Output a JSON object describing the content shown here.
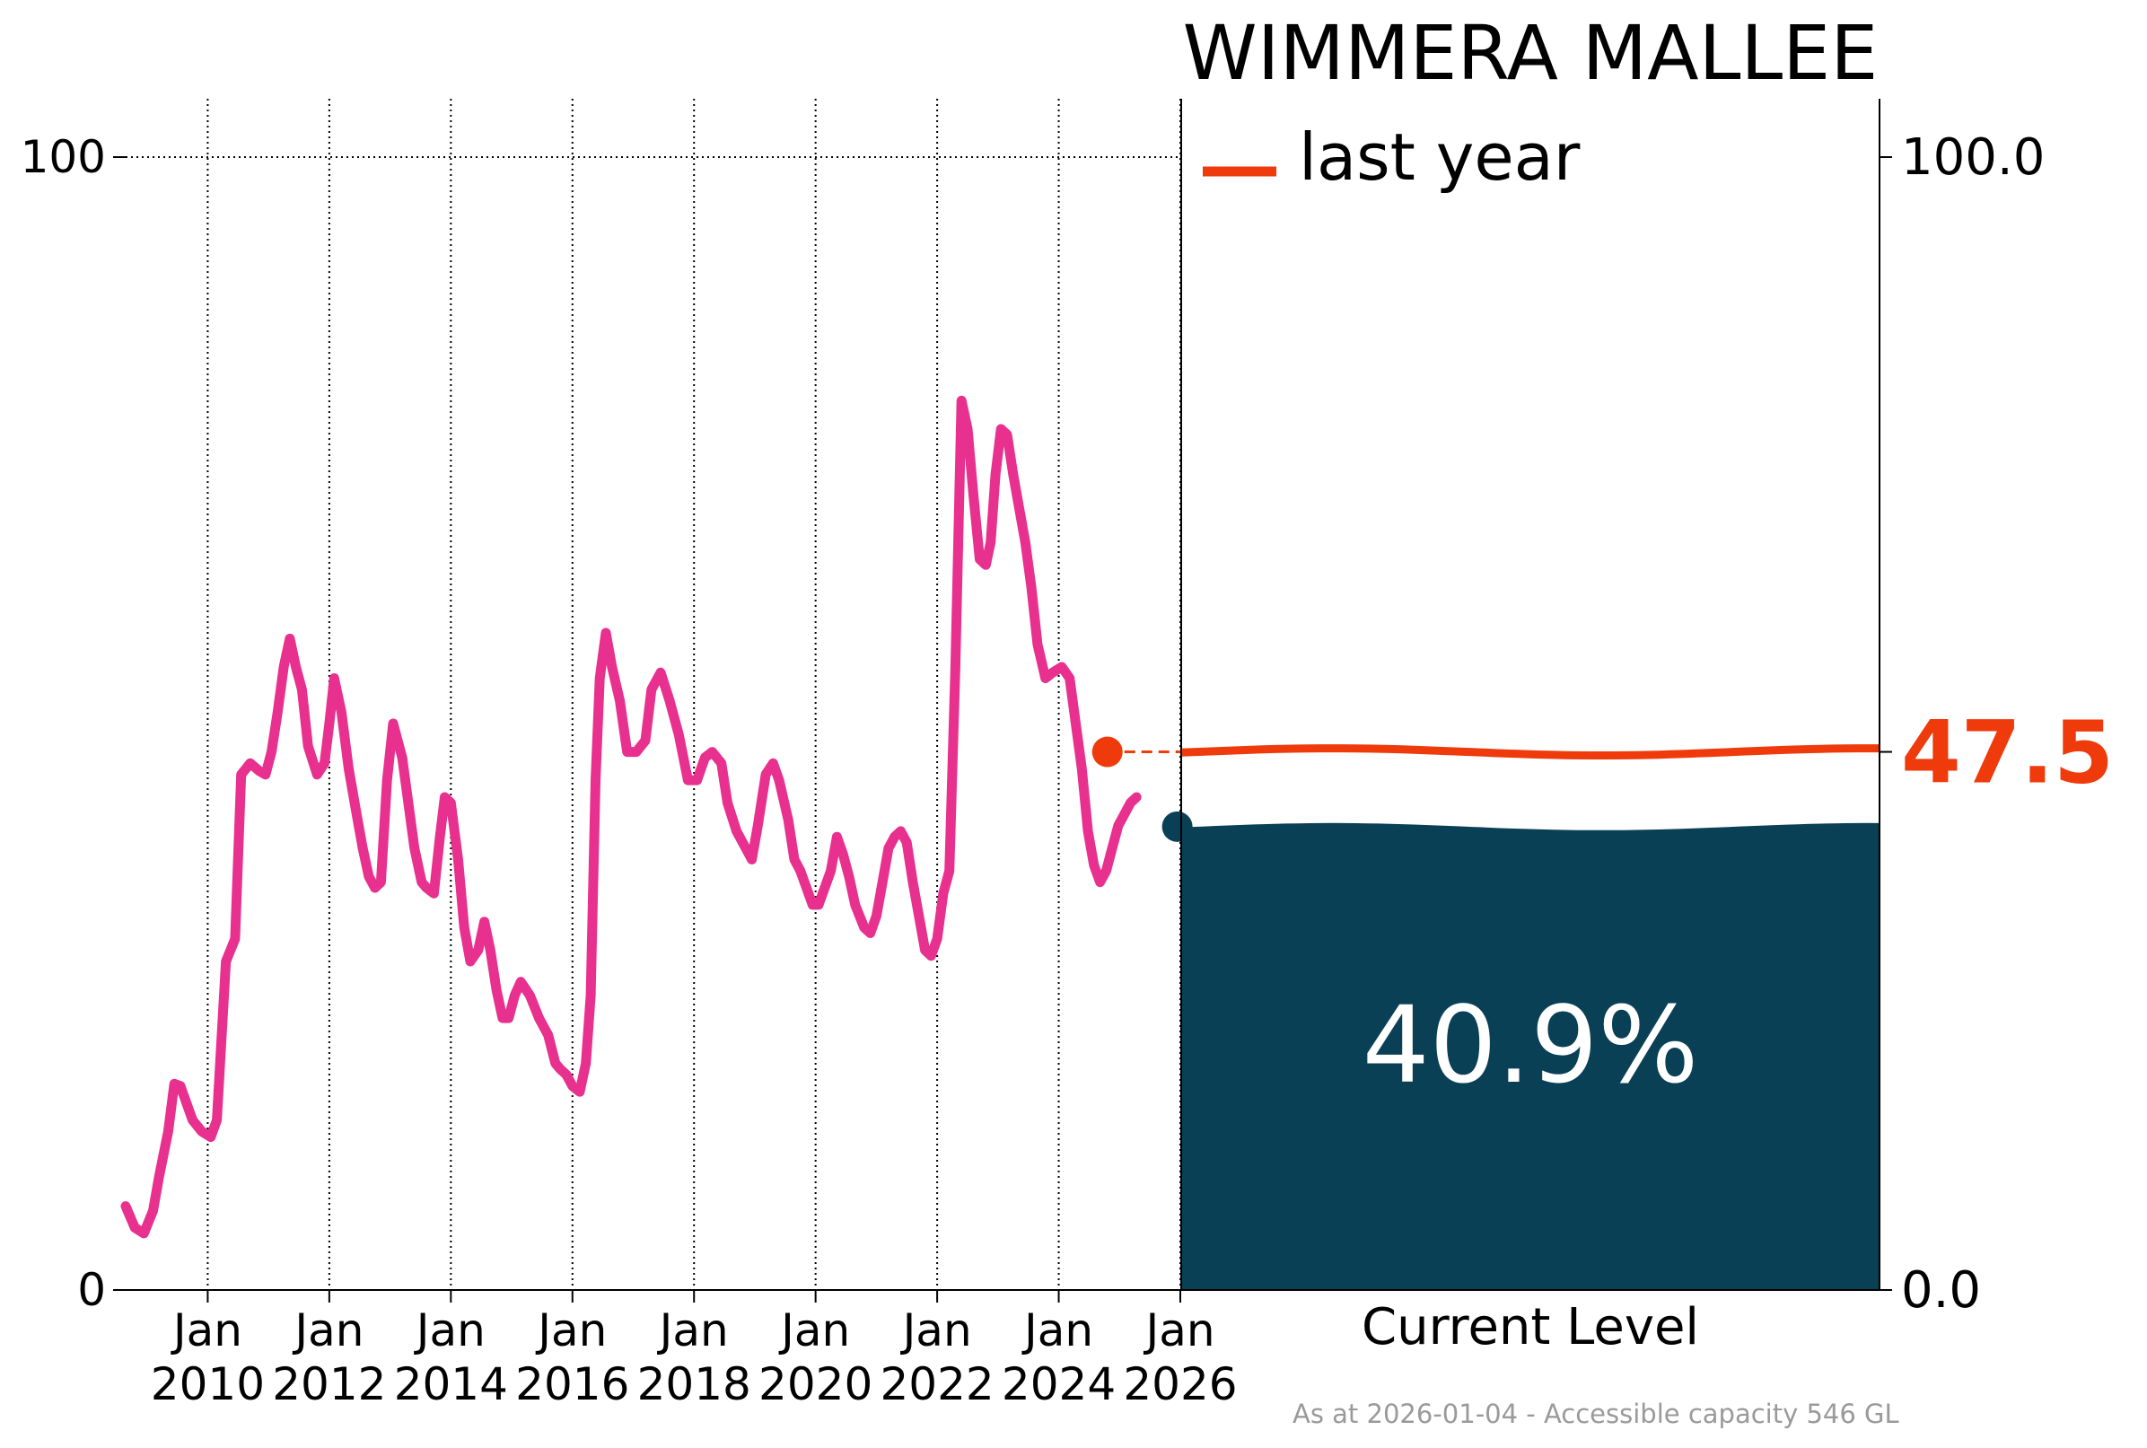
{
  "chart_data": {
    "type": "line",
    "title": "WIMMERA MALLEE",
    "footnote": "As at 2026-01-04 - Accessible capacity 546 GL",
    "left_axis": {
      "ylim": [
        0,
        100
      ],
      "ticks": [
        {
          "value": 0,
          "label": "0"
        },
        {
          "value": 100,
          "label": "100"
        }
      ],
      "grid_y": [
        100
      ]
    },
    "x_axis": {
      "xlim": [
        2008.65,
        2026.0
      ],
      "ticks": [
        {
          "value": 2010.0,
          "label_top": "Jan",
          "label_bottom": "2010"
        },
        {
          "value": 2012.0,
          "label_top": "Jan",
          "label_bottom": "2012"
        },
        {
          "value": 2014.0,
          "label_top": "Jan",
          "label_bottom": "2014"
        },
        {
          "value": 2016.0,
          "label_top": "Jan",
          "label_bottom": "2016"
        },
        {
          "value": 2018.0,
          "label_top": "Jan",
          "label_bottom": "2018"
        },
        {
          "value": 2020.0,
          "label_top": "Jan",
          "label_bottom": "2020"
        },
        {
          "value": 2022.0,
          "label_top": "Jan",
          "label_bottom": "2022"
        },
        {
          "value": 2024.0,
          "label_top": "Jan",
          "label_bottom": "2024"
        },
        {
          "value": 2026.0,
          "label_top": "Jan",
          "label_bottom": "2026"
        }
      ],
      "grid": "vertical dotted lines at year ticks"
    },
    "series": [
      {
        "color": "#e8308f",
        "points": [
          [
            2008.65,
            7.4
          ],
          [
            2008.8,
            5.5
          ],
          [
            2008.95,
            5.0
          ],
          [
            2009.1,
            7.0
          ],
          [
            2009.2,
            10.0
          ],
          [
            2009.35,
            14.0
          ],
          [
            2009.45,
            18.2
          ],
          [
            2009.55,
            18.0
          ],
          [
            2009.75,
            15.0
          ],
          [
            2009.9,
            14.0
          ],
          [
            2010.05,
            13.5
          ],
          [
            2010.15,
            15.0
          ],
          [
            2010.3,
            29.0
          ],
          [
            2010.45,
            31.0
          ],
          [
            2010.55,
            45.5
          ],
          [
            2010.7,
            46.5
          ],
          [
            2010.85,
            45.8
          ],
          [
            2010.95,
            45.5
          ],
          [
            2011.05,
            47.5
          ],
          [
            2011.15,
            51.0
          ],
          [
            2011.25,
            55.0
          ],
          [
            2011.35,
            57.5
          ],
          [
            2011.45,
            55.0
          ],
          [
            2011.55,
            53.0
          ],
          [
            2011.65,
            48.0
          ],
          [
            2011.8,
            45.5
          ],
          [
            2011.92,
            46.5
          ],
          [
            2012.0,
            50.0
          ],
          [
            2012.08,
            54.0
          ],
          [
            2012.2,
            51.0
          ],
          [
            2012.32,
            46.0
          ],
          [
            2012.45,
            42.0
          ],
          [
            2012.55,
            39.0
          ],
          [
            2012.65,
            36.5
          ],
          [
            2012.75,
            35.5
          ],
          [
            2012.85,
            36.0
          ],
          [
            2012.95,
            45.0
          ],
          [
            2013.05,
            50.0
          ],
          [
            2013.2,
            47.0
          ],
          [
            2013.3,
            43.0
          ],
          [
            2013.4,
            39.0
          ],
          [
            2013.52,
            36.0
          ],
          [
            2013.6,
            35.5
          ],
          [
            2013.72,
            35.0
          ],
          [
            2013.82,
            40.0
          ],
          [
            2013.9,
            43.5
          ],
          [
            2014.0,
            43.0
          ],
          [
            2014.12,
            38.0
          ],
          [
            2014.22,
            32.0
          ],
          [
            2014.32,
            29.0
          ],
          [
            2014.45,
            30.0
          ],
          [
            2014.55,
            32.5
          ],
          [
            2014.65,
            30.0
          ],
          [
            2014.75,
            26.5
          ],
          [
            2014.85,
            24.0
          ],
          [
            2014.95,
            24.0
          ],
          [
            2015.05,
            26.0
          ],
          [
            2015.15,
            27.2
          ],
          [
            2015.3,
            26.0
          ],
          [
            2015.45,
            24.0
          ],
          [
            2015.6,
            22.5
          ],
          [
            2015.72,
            20.0
          ],
          [
            2015.8,
            19.5
          ],
          [
            2015.9,
            19.0
          ],
          [
            2016.0,
            18.0
          ],
          [
            2016.12,
            17.5
          ],
          [
            2016.22,
            20.0
          ],
          [
            2016.3,
            26.0
          ],
          [
            2016.38,
            45.0
          ],
          [
            2016.45,
            54.0
          ],
          [
            2016.55,
            58.0
          ],
          [
            2016.65,
            55.0
          ],
          [
            2016.78,
            52.0
          ],
          [
            2016.9,
            47.5
          ],
          [
            2017.05,
            47.5
          ],
          [
            2017.2,
            48.5
          ],
          [
            2017.3,
            53.0
          ],
          [
            2017.45,
            54.5
          ],
          [
            2017.6,
            52.0
          ],
          [
            2017.75,
            49.0
          ],
          [
            2017.9,
            45.0
          ],
          [
            2018.05,
            45.0
          ],
          [
            2018.18,
            47.0
          ],
          [
            2018.3,
            47.5
          ],
          [
            2018.45,
            46.5
          ],
          [
            2018.55,
            43.0
          ],
          [
            2018.7,
            40.5
          ],
          [
            2018.85,
            39.0
          ],
          [
            2018.95,
            38.0
          ],
          [
            2019.05,
            41.0
          ],
          [
            2019.18,
            45.5
          ],
          [
            2019.3,
            46.5
          ],
          [
            2019.4,
            45.0
          ],
          [
            2019.55,
            41.5
          ],
          [
            2019.65,
            38.0
          ],
          [
            2019.75,
            37.0
          ],
          [
            2019.85,
            35.5
          ],
          [
            2019.95,
            34.0
          ],
          [
            2020.05,
            34.0
          ],
          [
            2020.15,
            35.5
          ],
          [
            2020.25,
            37.0
          ],
          [
            2020.35,
            40.0
          ],
          [
            2020.45,
            38.5
          ],
          [
            2020.55,
            36.5
          ],
          [
            2020.65,
            34.0
          ],
          [
            2020.8,
            32.0
          ],
          [
            2020.9,
            31.5
          ],
          [
            2021.0,
            33.0
          ],
          [
            2021.1,
            36.0
          ],
          [
            2021.2,
            39.0
          ],
          [
            2021.3,
            40.0
          ],
          [
            2021.4,
            40.5
          ],
          [
            2021.5,
            39.5
          ],
          [
            2021.6,
            36.0
          ],
          [
            2021.7,
            33.0
          ],
          [
            2021.8,
            30.0
          ],
          [
            2021.9,
            29.5
          ],
          [
            2022.0,
            31.0
          ],
          [
            2022.1,
            35.0
          ],
          [
            2022.2,
            37.0
          ],
          [
            2022.3,
            55.0
          ],
          [
            2022.4,
            78.5
          ],
          [
            2022.5,
            76.0
          ],
          [
            2022.6,
            70.0
          ],
          [
            2022.7,
            64.5
          ],
          [
            2022.8,
            64.0
          ],
          [
            2022.88,
            66.0
          ],
          [
            2022.96,
            72.0
          ],
          [
            2023.05,
            76.0
          ],
          [
            2023.15,
            75.5
          ],
          [
            2023.25,
            72.0
          ],
          [
            2023.35,
            69.0
          ],
          [
            2023.45,
            66.0
          ],
          [
            2023.55,
            62.0
          ],
          [
            2023.65,
            57.0
          ],
          [
            2023.78,
            54.0
          ],
          [
            2023.9,
            54.5
          ],
          [
            2024.05,
            55.0
          ],
          [
            2024.18,
            54.0
          ],
          [
            2024.28,
            50.0
          ],
          [
            2024.38,
            46.0
          ],
          [
            2024.48,
            40.5
          ],
          [
            2024.58,
            37.5
          ],
          [
            2024.68,
            36.0
          ],
          [
            2024.78,
            37.0
          ],
          [
            2024.88,
            39.0
          ],
          [
            2024.98,
            41.0
          ],
          [
            2025.08,
            42.0
          ],
          [
            2025.18,
            43.0
          ],
          [
            2025.28,
            43.5
          ]
        ]
      }
    ],
    "last_year_marker": {
      "x": 2024.8,
      "y": 47.5,
      "color": "#ef3a0c"
    },
    "current_marker": {
      "x": 2025.95,
      "y": 40.9,
      "color": "#0a4056"
    },
    "gauge": {
      "label": "Current Level",
      "value": 40.9,
      "value_label": "40.9%",
      "fill_color": "#0a4056",
      "last_year_value": 47.5,
      "last_year_label": "47.5",
      "last_year_color": "#ef3a0c",
      "right_ticks": [
        {
          "value": 0,
          "label": "0.0"
        },
        {
          "value": 100,
          "label": "100.0"
        }
      ]
    },
    "legend": [
      {
        "label": "last year",
        "color": "#ef3a0c"
      }
    ],
    "legend_position": "top-left of gauge panel"
  }
}
